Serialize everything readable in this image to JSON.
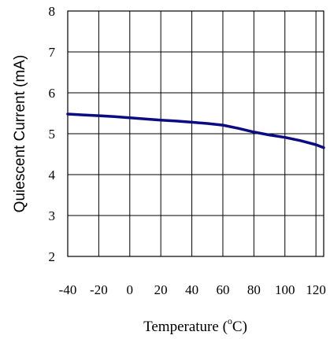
{
  "chart_data": {
    "type": "line",
    "xlabel_main": "Temperature (",
    "xlabel_sup": "o",
    "xlabel_end": "C)",
    "ylabel": "Quiescent Current (mA)",
    "xlim": [
      -40,
      125
    ],
    "ylim": [
      2,
      8
    ],
    "x_grid": [
      -40,
      -20,
      0,
      20,
      40,
      60,
      80,
      100,
      120
    ],
    "x_ticks": [
      "-40",
      "-20",
      "0",
      "20",
      "40",
      "60",
      "80",
      "100",
      "120"
    ],
    "y_grid": [
      2,
      3,
      4,
      5,
      6,
      7,
      8
    ],
    "y_ticks": [
      "2",
      "3",
      "4",
      "5",
      "6",
      "7",
      "8"
    ],
    "grid": true,
    "series": [
      {
        "color": "#0b0b82",
        "x": [
          -40,
          -30,
          -20,
          -10,
          0,
          10,
          20,
          30,
          40,
          50,
          60,
          70,
          80,
          90,
          100,
          110,
          120,
          125
        ],
        "y": [
          5.48,
          5.46,
          5.44,
          5.42,
          5.39,
          5.36,
          5.33,
          5.31,
          5.28,
          5.25,
          5.21,
          5.13,
          5.04,
          4.97,
          4.91,
          4.83,
          4.73,
          4.66
        ]
      }
    ]
  }
}
